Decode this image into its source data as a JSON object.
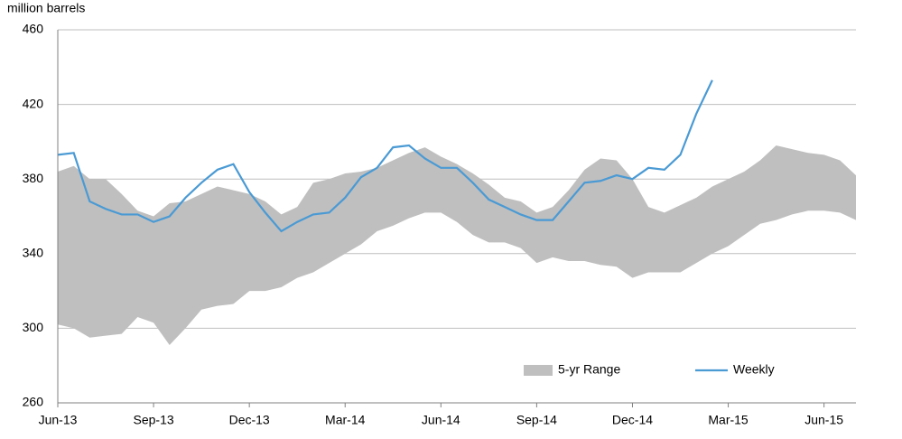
{
  "chart_data": {
    "type": "line",
    "y_label": "million barrels",
    "categories": [
      "Jun-13",
      null,
      null,
      null,
      null,
      null,
      "Sep-13",
      null,
      null,
      null,
      null,
      null,
      "Dec-13",
      null,
      null,
      null,
      null,
      null,
      "Mar-14",
      null,
      null,
      null,
      null,
      null,
      "Jun-14",
      null,
      null,
      null,
      null,
      null,
      "Sep-14",
      null,
      null,
      null,
      null,
      null,
      "Dec-14",
      null,
      null,
      null,
      null,
      null,
      "Mar-15",
      null,
      null,
      null,
      null,
      null,
      "Jun-15",
      null,
      null
    ],
    "series": [
      {
        "name": "5-yr Range",
        "kind": "range",
        "color": "#bfbfbf",
        "high": [
          384,
          387,
          380,
          380,
          372,
          363,
          360,
          367,
          368,
          372,
          376,
          374,
          372,
          368,
          361,
          365,
          378,
          380,
          383,
          384,
          386,
          390,
          394,
          397,
          392,
          388,
          383,
          377,
          370,
          368,
          362,
          365,
          374,
          385,
          391,
          390,
          380,
          365,
          362,
          366,
          370,
          376,
          380,
          384,
          390,
          398,
          396,
          394,
          393,
          390,
          382
        ],
        "low": [
          302,
          300,
          295,
          296,
          297,
          306,
          303,
          291,
          300,
          310,
          312,
          313,
          320,
          320,
          322,
          327,
          330,
          335,
          340,
          345,
          352,
          355,
          359,
          362,
          362,
          357,
          350,
          346,
          346,
          343,
          335,
          338,
          336,
          336,
          334,
          333,
          327,
          330,
          330,
          330,
          335,
          340,
          344,
          350,
          356,
          358,
          361,
          363,
          363,
          362,
          358
        ]
      },
      {
        "name": "Weekly",
        "color": "#4a9ad4",
        "values": [
          393,
          394,
          368,
          364,
          361,
          361,
          357,
          360,
          370,
          378,
          385,
          388,
          373,
          362,
          352,
          357,
          361,
          362,
          370,
          381,
          386,
          397,
          398,
          391,
          386,
          386,
          378,
          369,
          365,
          361,
          358,
          358,
          368,
          378,
          379,
          382,
          380,
          386,
          385,
          393,
          415,
          433,
          null,
          null,
          null,
          null,
          null,
          null,
          null,
          null,
          null
        ]
      }
    ],
    "ylim": [
      260,
      460
    ],
    "yticks": [
      260,
      300,
      340,
      380,
      420,
      460
    ],
    "grid": true
  }
}
